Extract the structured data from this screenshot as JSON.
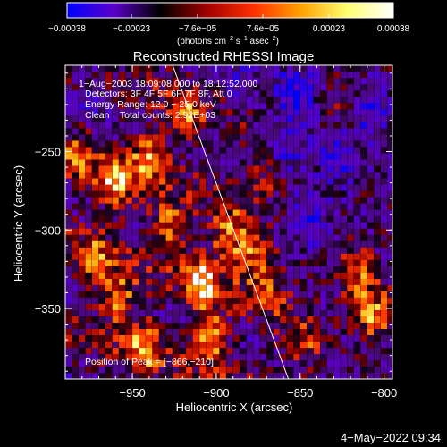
{
  "chart_data": {
    "type": "heatmap",
    "title": "Reconstructed RHESSI Image",
    "xlabel": "Heliocentric X (arcsec)",
    "ylabel": "Heliocentric Y (arcsec)",
    "xlim": [
      -990,
      -795
    ],
    "ylim": [
      -395,
      -195
    ],
    "x_ticks": [
      -950,
      -900,
      -850,
      -800
    ],
    "x_tick_labels": [
      "−950",
      "−900",
      "−850",
      "−800"
    ],
    "y_ticks": [
      -250,
      -300,
      -350
    ],
    "y_tick_labels": [
      "−250",
      "−300",
      "−350"
    ],
    "grid": false,
    "colorbar": {
      "orientation": "horizontal",
      "position": "top",
      "range": [
        -0.00038,
        0.00038
      ],
      "tick_values": [
        -0.00038,
        -0.00023,
        -7.6e-05,
        7.6e-05,
        0.00023,
        0.00038
      ],
      "tick_labels": [
        "−0.00038",
        "−0.00023",
        "−7.6e−05",
        "7.6e−05",
        "0.00023",
        "0.00038"
      ],
      "units_base": "(photons cm",
      "units_exp1": "−2",
      "units_mid": " s",
      "units_exp2": "−1",
      "units_mid2": " asec",
      "units_exp3": "−2",
      "units_end": ")",
      "colors": [
        "#0000ff",
        "#5a00c8",
        "#000000",
        "#a00000",
        "#ff3000",
        "#ffa000",
        "#ffff70",
        "#ffffff"
      ]
    },
    "annotations": [
      "1−Aug−2003 18:09:08.000 to 18:12:52.000",
      "Detectors: 3F 4F 5F 6F 7F 8F, Att 0",
      "Energy Range: 12.0 − 25.0 keV",
      "Clean    Total counts: 2.92E+03",
      "Position of Peak = [−866,−210]"
    ],
    "limb_line": {
      "x": [
        -926,
        -857
      ],
      "y": [
        -195,
        -395
      ]
    },
    "bright_regions": [
      {
        "x": -962,
        "y": -275,
        "intensity": 0.9
      },
      {
        "x": -942,
        "y": -255,
        "intensity": 0.85
      },
      {
        "x": -930,
        "y": -300,
        "intensity": 0.8
      },
      {
        "x": -912,
        "y": -335,
        "intensity": 0.95
      },
      {
        "x": -895,
        "y": -305,
        "intensity": 0.8
      },
      {
        "x": -880,
        "y": -318,
        "intensity": 0.7
      },
      {
        "x": -960,
        "y": -345,
        "intensity": 0.8
      },
      {
        "x": -945,
        "y": -375,
        "intensity": 0.75
      },
      {
        "x": -905,
        "y": -370,
        "intensity": 0.9
      },
      {
        "x": -870,
        "y": -345,
        "intensity": 0.65
      },
      {
        "x": -975,
        "y": -320,
        "intensity": 0.6
      },
      {
        "x": -920,
        "y": -230,
        "intensity": 0.55
      },
      {
        "x": -818,
        "y": -330,
        "intensity": 0.7
      },
      {
        "x": -808,
        "y": -355,
        "intensity": 0.8
      },
      {
        "x": -850,
        "y": -372,
        "intensity": 0.6
      },
      {
        "x": -985,
        "y": -255,
        "intensity": 0.5
      },
      {
        "x": -875,
        "y": -270,
        "intensity": 0.45
      },
      {
        "x": -825,
        "y": -220,
        "intensity": 0.35
      }
    ],
    "dark_regions": [
      {
        "x": -855,
        "y": -215,
        "intensity": -0.7
      },
      {
        "x": -830,
        "y": -255,
        "intensity": -0.5
      },
      {
        "x": -810,
        "y": -225,
        "intensity": -0.6
      },
      {
        "x": -845,
        "y": -295,
        "intensity": -0.45
      },
      {
        "x": -975,
        "y": -210,
        "intensity": -0.4
      },
      {
        "x": -890,
        "y": -215,
        "intensity": -0.35
      },
      {
        "x": -860,
        "y": -250,
        "intensity": -0.4
      }
    ]
  },
  "timestamp": "4−May−2022 09:34"
}
